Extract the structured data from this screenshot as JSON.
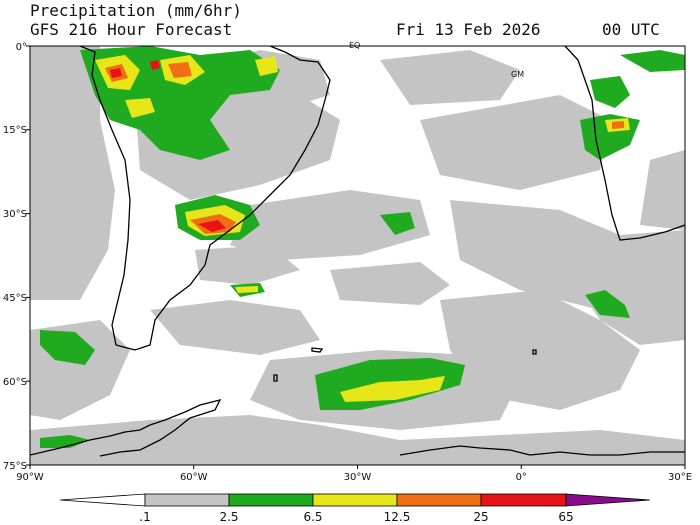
{
  "header": {
    "title": "Precipitation (mm/6hr)",
    "subtitle": "GFS 216 Hour Forecast",
    "date": "Fri 13 Feb 2026",
    "time": "00 UTC"
  },
  "axes": {
    "lat_labels": [
      "0°",
      "15°S",
      "30°S",
      "45°S",
      "60°S",
      "75°S"
    ],
    "lon_labels": [
      "90°W",
      "60°W",
      "30°W",
      "0°",
      "30°E"
    ]
  },
  "markers": {
    "equator": "EQ",
    "greenwich": "GM"
  },
  "legend": {
    "labels": [
      ".1",
      "2.5",
      "6.5",
      "12.5",
      "25",
      "65"
    ],
    "colors": [
      "#ffffff",
      "#c4c4c4",
      "#1faa1f",
      "#e6e619",
      "#f06e14",
      "#e61414",
      "#8c0a8c"
    ]
  },
  "colors": {
    "light": "#c4c4c4",
    "moderate": "#1faa1f",
    "heavy": "#e6e619",
    "intense": "#f06e14",
    "extreme": "#e61414",
    "coast": "#000000"
  }
}
